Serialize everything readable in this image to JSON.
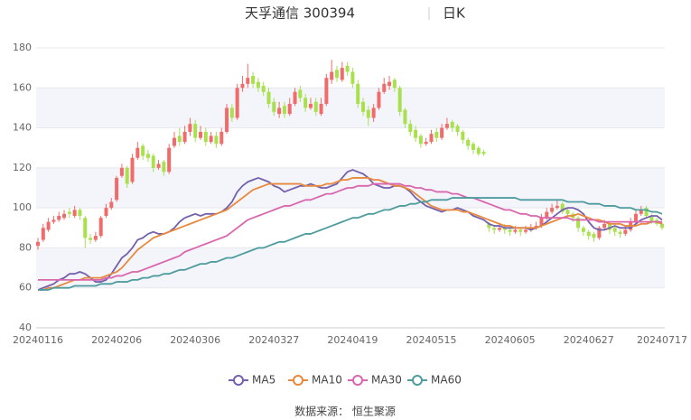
{
  "chart_data": {
    "type": "candlestick",
    "title": "天孚通信 300394",
    "subtitle": "日K",
    "source": "数据来源： 恒生聚源",
    "categories": [
      "20240116",
      null,
      null,
      null,
      null,
      null,
      null,
      null,
      null,
      null,
      null,
      null,
      null,
      null,
      null,
      "20240206",
      null,
      null,
      null,
      null,
      null,
      null,
      null,
      null,
      null,
      null,
      null,
      null,
      null,
      null,
      "20240306",
      null,
      null,
      null,
      null,
      null,
      null,
      null,
      null,
      null,
      null,
      null,
      null,
      null,
      null,
      "20240327",
      null,
      null,
      null,
      null,
      null,
      null,
      null,
      null,
      null,
      null,
      null,
      null,
      null,
      null,
      "20240419",
      null,
      null,
      null,
      null,
      null,
      null,
      null,
      null,
      null,
      null,
      null,
      null,
      null,
      null,
      "20240515",
      null,
      null,
      null,
      null,
      null,
      null,
      null,
      null,
      null,
      null,
      null,
      null,
      null,
      null,
      "20240605",
      null,
      null,
      null,
      null,
      null,
      null,
      null,
      null,
      null,
      null,
      null,
      null,
      null,
      null,
      "20240627",
      null,
      null,
      null,
      null,
      null,
      null,
      null,
      null,
      null,
      null,
      null,
      null,
      null,
      "20240717"
    ],
    "open": [
      81,
      84,
      89,
      93,
      94,
      95,
      98,
      96,
      99,
      95,
      85,
      84,
      86,
      96,
      100,
      104,
      116,
      120,
      113,
      125,
      131,
      127,
      126,
      120,
      123,
      118,
      131,
      136,
      133,
      138,
      142,
      135,
      138,
      133,
      136,
      132,
      138,
      150,
      145,
      160,
      162,
      166,
      163,
      161,
      158,
      153,
      147,
      151,
      147,
      152,
      159,
      155,
      150,
      153,
      147,
      152,
      164,
      169,
      164,
      171,
      168,
      162,
      153,
      149,
      145,
      150,
      158,
      161,
      164,
      160,
      149,
      142,
      139,
      136,
      132,
      133,
      138,
      135,
      140,
      143,
      141,
      138,
      134,
      132,
      130,
      128,
      92,
      90,
      89,
      90,
      89,
      88,
      89,
      88,
      89,
      90,
      91,
      95,
      98,
      100,
      102,
      99,
      97,
      95,
      90,
      88,
      87,
      85,
      90,
      92,
      90,
      88,
      87,
      89,
      93,
      97,
      100,
      96,
      94,
      92
    ],
    "high": [
      85,
      92,
      95,
      96,
      98,
      99,
      100,
      101,
      100,
      96,
      87,
      88,
      96,
      102,
      105,
      116,
      122,
      121,
      127,
      133,
      132,
      129,
      127,
      124,
      124,
      132,
      138,
      140,
      141,
      145,
      144,
      141,
      140,
      138,
      138,
      140,
      152,
      152,
      162,
      166,
      172,
      168,
      165,
      163,
      160,
      155,
      153,
      153,
      155,
      160,
      161,
      157,
      155,
      155,
      155,
      167,
      174,
      171,
      173,
      173,
      170,
      164,
      155,
      151,
      152,
      160,
      165,
      166,
      165,
      161,
      150,
      144,
      141,
      137,
      135,
      139,
      140,
      142,
      145,
      144,
      142,
      139,
      135,
      133,
      131,
      129,
      93,
      91,
      92,
      92,
      90,
      91,
      90,
      91,
      92,
      93,
      97,
      100,
      102,
      104,
      103,
      100,
      98,
      96,
      91,
      89,
      88,
      91,
      94,
      93,
      91,
      89,
      91,
      95,
      99,
      101,
      101,
      97,
      95,
      93
    ],
    "low": [
      79,
      83,
      88,
      92,
      93,
      94,
      95,
      95,
      94,
      80,
      82,
      83,
      85,
      95,
      99,
      103,
      115,
      110,
      112,
      124,
      124,
      123,
      118,
      119,
      116,
      117,
      130,
      131,
      132,
      136,
      133,
      134,
      131,
      132,
      130,
      131,
      137,
      143,
      144,
      158,
      160,
      160,
      158,
      156,
      150,
      146,
      145,
      145,
      146,
      151,
      153,
      148,
      149,
      146,
      146,
      151,
      162,
      163,
      163,
      166,
      160,
      150,
      146,
      141,
      143,
      149,
      157,
      159,
      158,
      146,
      140,
      136,
      133,
      130,
      131,
      132,
      133,
      134,
      139,
      138,
      136,
      132,
      129,
      127,
      126,
      126,
      88,
      87,
      88,
      87,
      86,
      87,
      86,
      87,
      88,
      89,
      90,
      94,
      97,
      99,
      97,
      95,
      93,
      88,
      86,
      84,
      83,
      84,
      89,
      87,
      86,
      85,
      86,
      88,
      92,
      96,
      95,
      92,
      91,
      89
    ],
    "close": [
      83,
      90,
      93,
      94,
      96,
      97,
      97,
      99,
      96,
      85,
      84,
      86,
      95,
      100,
      103,
      115,
      120,
      112,
      125,
      130,
      126,
      125,
      120,
      122,
      118,
      130,
      135,
      133,
      138,
      142,
      135,
      138,
      133,
      136,
      132,
      138,
      150,
      145,
      160,
      162,
      165,
      162,
      160,
      158,
      152,
      148,
      150,
      147,
      152,
      158,
      155,
      150,
      152,
      148,
      152,
      165,
      168,
      165,
      170,
      168,
      162,
      152,
      148,
      145,
      150,
      158,
      162,
      163,
      160,
      148,
      142,
      138,
      135,
      132,
      133,
      137,
      135,
      140,
      142,
      140,
      138,
      134,
      131,
      129,
      127,
      127,
      90,
      89,
      90,
      89,
      88,
      89,
      88,
      89,
      90,
      91,
      95,
      98,
      100,
      101,
      98,
      97,
      95,
      90,
      88,
      86,
      85,
      90,
      92,
      89,
      88,
      87,
      89,
      93,
      97,
      99,
      96,
      93,
      92,
      90
    ],
    "up_color": "#f26b6b",
    "down_color": "#a8e04e",
    "series": [
      {
        "name": "MA5",
        "color": "#7460ad",
        "values": [
          59,
          60,
          61,
          62,
          64,
          65,
          67,
          67,
          68,
          67,
          65,
          63,
          63,
          64,
          67,
          71,
          75,
          77,
          80,
          84,
          85,
          87,
          88,
          87,
          87,
          88,
          90,
          93,
          95,
          96,
          97,
          96,
          97,
          97,
          97,
          98,
          100,
          103,
          108,
          111,
          113,
          114,
          115,
          114,
          113,
          111,
          110,
          108,
          109,
          110,
          111,
          111,
          112,
          111,
          110,
          110,
          111,
          112,
          115,
          118,
          119,
          118,
          117,
          115,
          112,
          111,
          110,
          110,
          111,
          111,
          110,
          108,
          105,
          103,
          101,
          100,
          99,
          98,
          99,
          99,
          100,
          99,
          98,
          96,
          95,
          94,
          92,
          91,
          91,
          90,
          90,
          90,
          90,
          90,
          89,
          90,
          91,
          93,
          95,
          97,
          99,
          100,
          100,
          99,
          97,
          93,
          90,
          89,
          89,
          90,
          91,
          90,
          90,
          90,
          92,
          94,
          95,
          96,
          96,
          94
        ]
      },
      {
        "name": "MA10",
        "color": "#e8893d",
        "values": [
          59,
          59,
          60,
          60,
          61,
          62,
          63,
          64,
          64,
          65,
          65,
          65,
          65,
          66,
          67,
          68,
          70,
          73,
          76,
          79,
          81,
          83,
          85,
          86,
          87,
          88,
          89,
          90,
          91,
          92,
          93,
          94,
          95,
          96,
          97,
          98,
          99,
          101,
          103,
          105,
          107,
          109,
          110,
          111,
          112,
          112,
          112,
          112,
          112,
          112,
          112,
          111,
          111,
          111,
          111,
          112,
          112,
          113,
          114,
          114,
          115,
          115,
          115,
          115,
          114,
          114,
          113,
          112,
          111,
          111,
          110,
          109,
          107,
          105,
          103,
          101,
          100,
          99,
          99,
          99,
          99,
          98,
          98,
          97,
          96,
          95,
          94,
          93,
          92,
          91,
          91,
          90,
          90,
          90,
          90,
          90,
          91,
          92,
          93,
          94,
          95,
          96,
          96,
          97,
          96,
          95,
          94,
          94,
          93,
          92,
          92,
          92,
          91,
          91,
          91,
          92,
          92,
          93,
          93,
          92
        ]
      },
      {
        "name": "MA30",
        "color": "#da67ae",
        "values": [
          64,
          64,
          64,
          64,
          64,
          64,
          64,
          64,
          64,
          64,
          64,
          64,
          64,
          65,
          65,
          66,
          66,
          67,
          68,
          68,
          69,
          70,
          71,
          72,
          73,
          74,
          75,
          76,
          78,
          79,
          80,
          81,
          82,
          83,
          84,
          85,
          86,
          88,
          90,
          92,
          94,
          95,
          96,
          97,
          98,
          99,
          100,
          101,
          101,
          102,
          103,
          104,
          104,
          105,
          106,
          107,
          107,
          108,
          109,
          110,
          110,
          111,
          111,
          111,
          112,
          112,
          112,
          112,
          112,
          112,
          111,
          111,
          110,
          110,
          109,
          109,
          108,
          108,
          108,
          107,
          107,
          106,
          105,
          105,
          104,
          103,
          102,
          101,
          100,
          99,
          99,
          98,
          97,
          97,
          96,
          96,
          95,
          95,
          95,
          95,
          95,
          95,
          94,
          94,
          94,
          94,
          94,
          93,
          93,
          93,
          93,
          93,
          93,
          93,
          93,
          93,
          93,
          93,
          93,
          93
        ]
      },
      {
        "name": "MA60",
        "color": "#4e9c9e",
        "values": [
          59,
          59,
          59,
          60,
          60,
          60,
          60,
          61,
          61,
          61,
          61,
          61,
          62,
          62,
          62,
          63,
          63,
          63,
          64,
          64,
          65,
          65,
          66,
          66,
          67,
          67,
          68,
          69,
          69,
          70,
          71,
          72,
          72,
          73,
          73,
          74,
          75,
          75,
          76,
          77,
          78,
          79,
          80,
          80,
          81,
          82,
          83,
          83,
          84,
          85,
          86,
          87,
          87,
          88,
          89,
          90,
          91,
          92,
          93,
          94,
          95,
          95,
          96,
          97,
          97,
          98,
          99,
          99,
          100,
          101,
          101,
          102,
          102,
          103,
          103,
          104,
          104,
          104,
          104,
          105,
          105,
          105,
          105,
          105,
          105,
          105,
          105,
          105,
          105,
          105,
          105,
          105,
          104,
          104,
          104,
          104,
          104,
          104,
          104,
          104,
          104,
          103,
          103,
          103,
          103,
          102,
          102,
          102,
          101,
          101,
          101,
          100,
          100,
          100,
          99,
          99,
          99,
          98,
          98,
          97
        ]
      }
    ],
    "ylim": [
      40,
      180
    ],
    "yticks": [
      40,
      60,
      80,
      100,
      120,
      140,
      160,
      180
    ],
    "grid": true,
    "legend": "bottom"
  }
}
